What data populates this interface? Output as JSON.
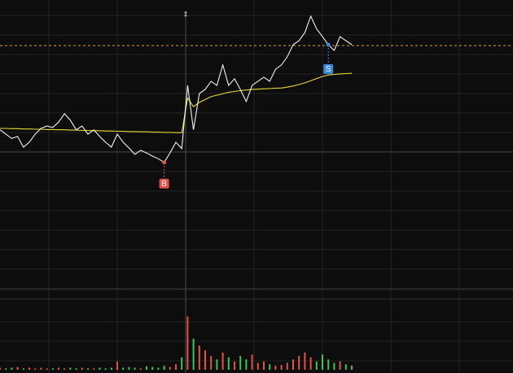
{
  "chart_data": {
    "type": "line",
    "ylim": [
      0,
      100
    ],
    "volume_ylim": [
      0,
      100
    ],
    "grid": true,
    "reference_line": {
      "value": 84.2,
      "color": "#d9a520"
    },
    "up_color": "#e0524a",
    "down_color": "#3fbf5f",
    "series": [
      {
        "color": "#f2f2f2",
        "values": [
          55,
          53.5,
          52,
          52.7,
          49,
          50.7,
          53.5,
          55.5,
          56.3,
          55.8,
          57.7,
          60.6,
          58.3,
          55,
          56.3,
          53.5,
          55,
          52.7,
          50.7,
          49,
          53.5,
          50.7,
          48.7,
          46.5,
          47.9,
          47,
          45.9,
          45,
          43.7,
          47,
          50.7,
          48.5,
          70.4,
          55,
          67.6,
          69,
          71.8,
          70.4,
          77.5,
          70.4,
          72.7,
          69,
          64.8,
          70.4,
          71.8,
          73.2,
          71.8,
          76,
          77.5,
          80.3,
          84.5,
          85.9,
          88.7,
          94.4,
          90,
          87.3,
          84.5,
          82.5,
          87.3,
          85.9,
          84.5
        ]
      },
      {
        "color": "#e6d93a",
        "values": [
          55.5,
          55.5,
          55.4,
          55.4,
          55.3,
          55.3,
          55.2,
          55.2,
          55.1,
          55.1,
          55,
          55,
          54.9,
          54.9,
          54.8,
          54.8,
          54.7,
          54.7,
          54.6,
          54.6,
          54.5,
          54.5,
          54.4,
          54.4,
          54.3,
          54.3,
          54.2,
          54.2,
          54.1,
          54.1,
          54,
          54,
          66,
          63,
          64.5,
          65.5,
          66.5,
          67,
          67.5,
          68,
          68.3,
          68.6,
          68.8,
          69,
          69.1,
          69.2,
          69.3,
          69.4,
          69.5,
          69.8,
          70.2,
          70.7,
          71.3,
          72,
          72.8,
          73.5,
          74,
          74.2,
          74.4,
          74.5,
          74.6
        ]
      }
    ],
    "volume": [
      3,
      2,
      3,
      4,
      2,
      3,
      2,
      3,
      2,
      2,
      3,
      2,
      3,
      2,
      3,
      2,
      2,
      3,
      2,
      3,
      12,
      3,
      4,
      3,
      2,
      5,
      4,
      3,
      6,
      4,
      8,
      18,
      77,
      45,
      35,
      28,
      20,
      15,
      25,
      18,
      12,
      20,
      15,
      22,
      10,
      12,
      8,
      6,
      7,
      10,
      15,
      20,
      25,
      18,
      12,
      22,
      15,
      10,
      12,
      8,
      6
    ],
    "markers": [
      {
        "label": "B",
        "index": 28,
        "color": "#e0524a"
      },
      {
        "label": "S",
        "index": 56,
        "color": "#3a86d8"
      }
    ]
  }
}
